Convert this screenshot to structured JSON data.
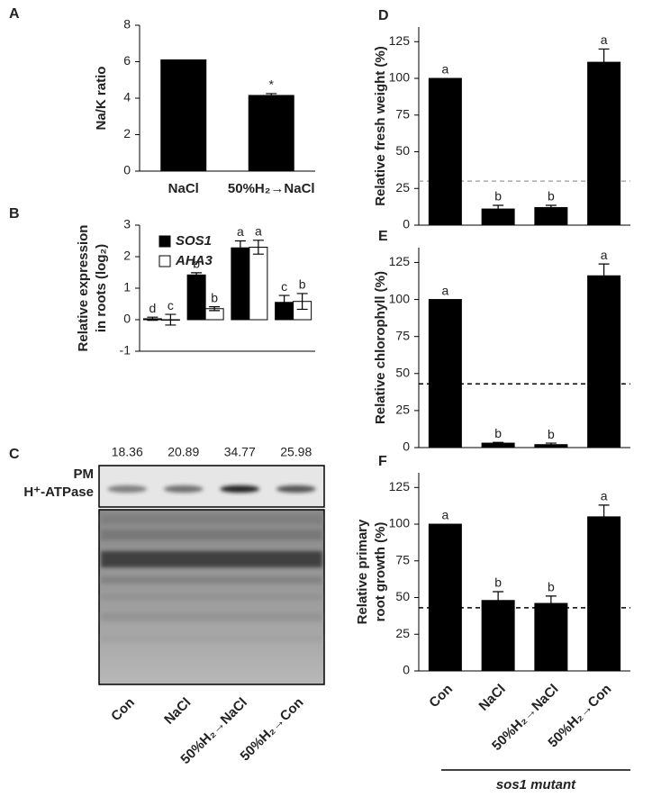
{
  "chart_data": [
    {
      "type": "bar",
      "panel_label": "A",
      "ylabel": [
        "Na/K ratio"
      ],
      "categories": [
        "NaCl",
        "50%H₂→NaCl"
      ],
      "values": [
        6.1,
        4.15
      ],
      "errors": [
        0,
        0.1
      ],
      "letters": [
        null,
        "*"
      ],
      "color": "#000000",
      "ylim": [
        0,
        8
      ],
      "yticks": [
        0,
        2,
        4,
        6,
        8
      ]
    },
    {
      "type": "bar",
      "panel_label": "B",
      "ylabel": [
        "Relative expression",
        "in roots (log₂)"
      ],
      "categories": [
        null,
        null,
        null,
        null
      ],
      "legend": "upper left",
      "series": [
        {
          "name": "SOS1",
          "color": "#000000",
          "values": [
            0.03,
            1.42,
            2.28,
            0.55
          ],
          "errors": [
            0.05,
            0.07,
            0.22,
            0.22
          ],
          "letters": [
            "d",
            "b",
            "a",
            "c"
          ]
        },
        {
          "name": "AHA3",
          "color": "#ffffff",
          "values": [
            0.0,
            0.35,
            2.3,
            0.58
          ],
          "errors": [
            0.17,
            0.06,
            0.22,
            0.25
          ],
          "letters": [
            "c",
            "b",
            "a",
            "b"
          ]
        }
      ],
      "ylim": [
        -1,
        3
      ],
      "yticks": [
        -1,
        0,
        1,
        2,
        3
      ]
    },
    {
      "type": "blot",
      "panel_label": "C",
      "densities": [
        18.36,
        20.89,
        34.77,
        25.98
      ],
      "band_label": [
        "PM",
        "H⁺-ATPase"
      ],
      "categories": [
        "Con",
        "NaCl",
        "50%H₂→NaCl",
        "50%H₂→Con"
      ]
    },
    {
      "type": "bar",
      "panel_label": "D",
      "ylabel": [
        "Relative fresh weight (%)"
      ],
      "categories": [
        null,
        null,
        null,
        null
      ],
      "values": [
        100,
        11,
        12,
        111
      ],
      "errors": [
        0,
        2.5,
        1.5,
        9
      ],
      "letters": [
        "a",
        "b",
        "b",
        "a"
      ],
      "color": "#000000",
      "threshold": 30,
      "threshold_color": "#aaaaaa",
      "ylim": [
        0,
        135
      ],
      "yticks": [
        0,
        25,
        50,
        75,
        100,
        125
      ]
    },
    {
      "type": "bar",
      "panel_label": "E",
      "ylabel": [
        "Relative chlorophyll (%)"
      ],
      "categories": [
        null,
        null,
        null,
        null
      ],
      "values": [
        100,
        3,
        2,
        116
      ],
      "errors": [
        0,
        0.5,
        1,
        8
      ],
      "letters": [
        "a",
        "b",
        "b",
        "a"
      ],
      "color": "#000000",
      "threshold": 43,
      "threshold_color": "#000000",
      "ylim": [
        0,
        135
      ],
      "yticks": [
        0,
        25,
        50,
        75,
        100,
        125
      ]
    },
    {
      "type": "bar",
      "panel_label": "F",
      "ylabel": [
        "Relative primary",
        "root growth (%)"
      ],
      "categories": [
        "Con",
        "NaCl",
        "50%H₂→NaCl",
        "50%H₂→Con"
      ],
      "rotate_labels": true,
      "xlabel": "sos1 mutant",
      "values": [
        100,
        48,
        46,
        105
      ],
      "errors": [
        0,
        6,
        5,
        8
      ],
      "letters": [
        "a",
        "b",
        "b",
        "a"
      ],
      "color": "#000000",
      "threshold": 43,
      "threshold_color": "#000000",
      "ylim": [
        0,
        135
      ],
      "yticks": [
        0,
        25,
        50,
        75,
        100,
        125
      ]
    }
  ]
}
